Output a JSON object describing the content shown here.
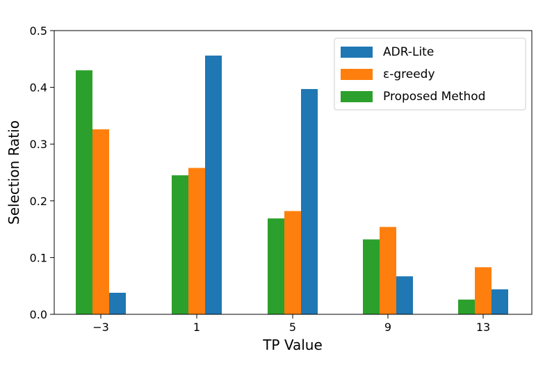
{
  "chart_data": {
    "type": "bar",
    "title": "",
    "xlabel": "TP Value",
    "ylabel": "Selection Ratio",
    "categories": [
      "−3",
      "1",
      "5",
      "9",
      "13"
    ],
    "ylim": [
      0,
      0.5
    ],
    "yticks": [
      "0.0",
      "0.1",
      "0.2",
      "0.3",
      "0.4",
      "0.5"
    ],
    "grid": false,
    "legend_position": "top-right",
    "series": [
      {
        "name": "Proposed Method",
        "color": "#2ca02c",
        "values": [
          0.43,
          0.245,
          0.169,
          0.132,
          0.026
        ]
      },
      {
        "name": "ε-greedy",
        "color": "#ff7f0e",
        "values": [
          0.326,
          0.258,
          0.182,
          0.154,
          0.083
        ]
      },
      {
        "name": "ADR-Lite",
        "color": "#1f77b4",
        "values": [
          0.038,
          0.456,
          0.397,
          0.067,
          0.044
        ]
      }
    ],
    "legend_order": [
      "ADR-Lite",
      "ε-greedy",
      "Proposed Method"
    ]
  }
}
